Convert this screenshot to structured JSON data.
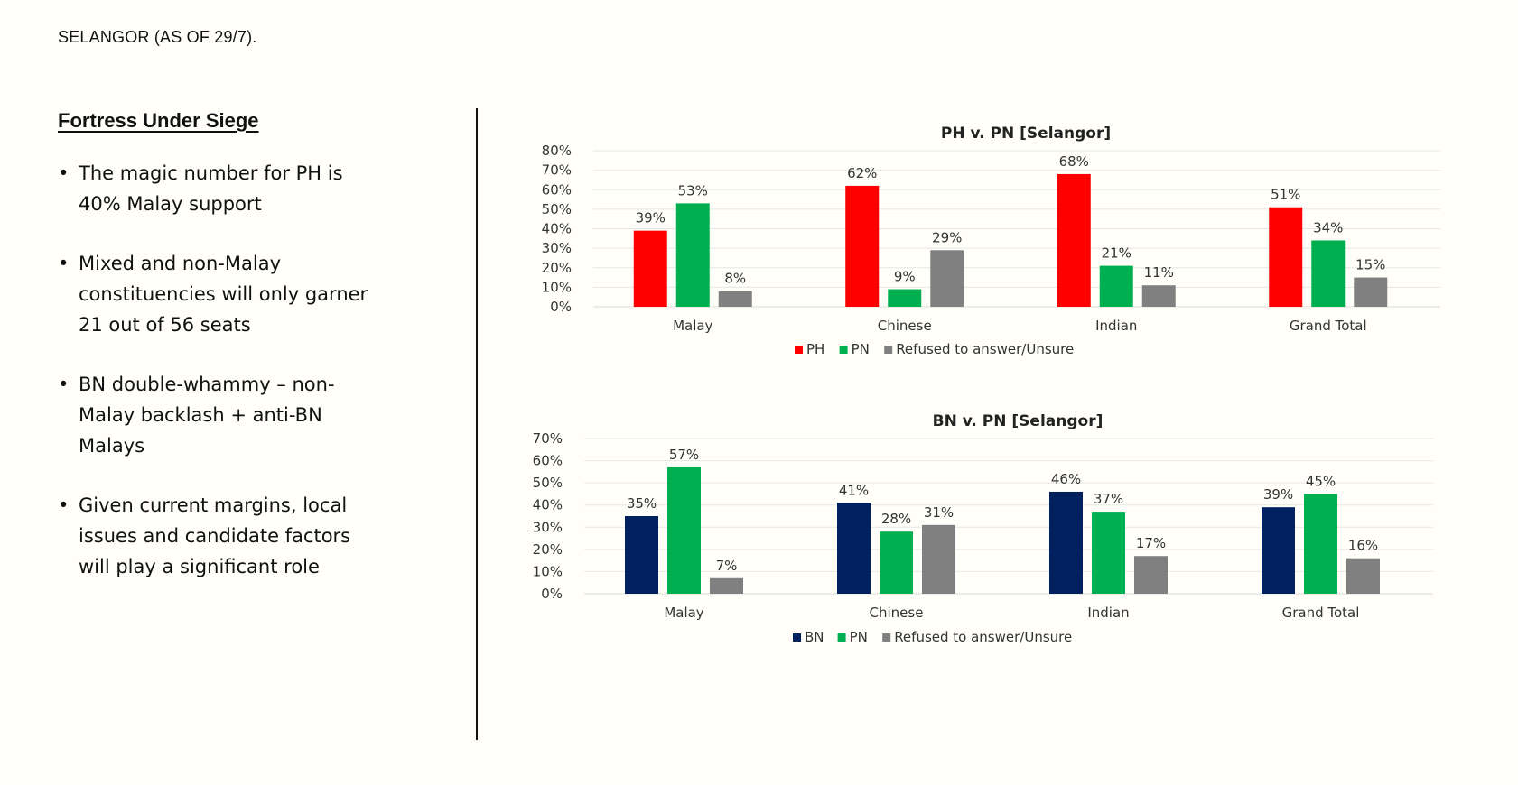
{
  "header": {
    "label": "SELANGOR (AS OF 29/7)."
  },
  "left_panel": {
    "title": "Fortress Under Siege",
    "bullets": [
      "The magic number for PH is 40% Malay support",
      "Mixed and non-Malay constituencies will only garner 21 out of 56 seats",
      "BN double-whammy – non-Malay backlash + anti-BN Malays",
      "Given current margins, local issues and candidate factors will play a significant role"
    ]
  },
  "chart_data": [
    {
      "type": "bar",
      "title": "PH v. PN [Selangor]",
      "categories": [
        "Malay",
        "Chinese",
        "Indian",
        "Grand Total"
      ],
      "series": [
        {
          "name": "PH",
          "values": [
            39,
            62,
            68,
            51
          ],
          "color": "#ff0000"
        },
        {
          "name": "PN",
          "values": [
            53,
            9,
            21,
            34
          ],
          "color": "#00b050"
        },
        {
          "name": "Refused to answer/Unsure",
          "values": [
            8,
            29,
            11,
            15
          ],
          "color": "#808080"
        }
      ],
      "ylim": [
        0,
        80
      ],
      "yticks": [
        0,
        10,
        20,
        30,
        40,
        50,
        60,
        70,
        80
      ],
      "unit": "%",
      "data_labels": true,
      "grid": true,
      "legend": "bottom"
    },
    {
      "type": "bar",
      "title": "BN v. PN [Selangor]",
      "categories": [
        "Malay",
        "Chinese",
        "Indian",
        "Grand Total"
      ],
      "series": [
        {
          "name": "BN",
          "values": [
            35,
            41,
            46,
            39
          ],
          "color": "#002060"
        },
        {
          "name": "PN",
          "values": [
            57,
            28,
            37,
            45
          ],
          "color": "#00b050"
        },
        {
          "name": "Refused to answer/Unsure",
          "values": [
            7,
            31,
            17,
            16
          ],
          "color": "#808080"
        }
      ],
      "ylim": [
        0,
        70
      ],
      "yticks": [
        0,
        10,
        20,
        30,
        40,
        50,
        60,
        70
      ],
      "unit": "%",
      "data_labels": true,
      "grid": true,
      "legend": "bottom"
    }
  ]
}
